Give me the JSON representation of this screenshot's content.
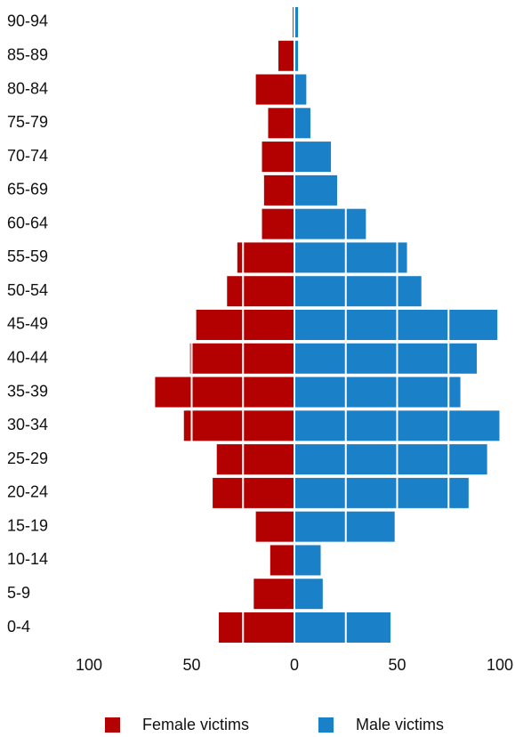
{
  "chart_data": {
    "type": "pyramid",
    "categories": [
      "0-4",
      "5-9",
      "10-14",
      "15-19",
      "20-24",
      "25-29",
      "30-34",
      "35-39",
      "40-44",
      "45-49",
      "50-54",
      "55-59",
      "60-64",
      "65-69",
      "70-74",
      "75-79",
      "80-84",
      "85-89",
      "90-94"
    ],
    "series": [
      {
        "name": "Female victims",
        "color": "#b30000",
        "values": [
          -37,
          -20,
          -12,
          -19,
          -40,
          -38,
          -54,
          -68,
          -51,
          -48,
          -33,
          -28,
          -16,
          -15,
          -16,
          -13,
          -19,
          -8,
          -1
        ]
      },
      {
        "name": "Male victims",
        "color": "#1a80c8",
        "values": [
          47,
          14,
          13,
          49,
          85,
          94,
          100,
          81,
          89,
          99,
          62,
          55,
          35,
          21,
          18,
          8,
          6,
          2,
          2
        ]
      }
    ],
    "xlim": [
      -100,
      100
    ],
    "xticks": [
      {
        "value": -100,
        "label": "100"
      },
      {
        "value": -50,
        "label": "50"
      },
      0,
      50,
      100
    ],
    "xgrid": [
      -75,
      -50,
      -25,
      0,
      25,
      50,
      75
    ],
    "legend": "bottom"
  }
}
